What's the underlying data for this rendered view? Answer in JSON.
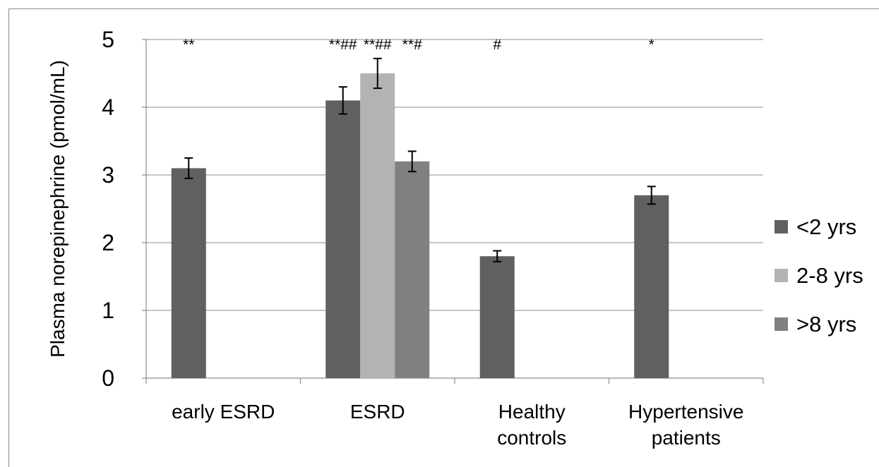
{
  "chart_data": {
    "type": "bar",
    "ylabel": "Plasma norepinephrine  (pmol/mL)",
    "xlabel": "",
    "ylim": [
      0,
      5
    ],
    "yticks": [
      "0",
      "1",
      "2",
      "3",
      "4",
      "5"
    ],
    "grid": true,
    "legend_position": "right",
    "categories": [
      {
        "lines": [
          "early ESRD"
        ]
      },
      {
        "lines": [
          "ESRD"
        ]
      },
      {
        "lines": [
          "Healthy",
          "controls"
        ]
      },
      {
        "lines": [
          "Hypertensive",
          "patients"
        ]
      }
    ],
    "series": [
      {
        "name": "<2 yrs",
        "color": "#606060",
        "values": [
          3.1,
          4.1,
          1.8,
          2.7
        ],
        "errors": [
          0.15,
          0.2,
          0.08,
          0.13
        ]
      },
      {
        "name": "2-8 yrs",
        "color": "#b3b3b3",
        "values": [
          null,
          4.5,
          null,
          null
        ],
        "errors": [
          null,
          0.22,
          null,
          null
        ]
      },
      {
        "name": ">8 yrs",
        "color": "#808080",
        "values": [
          null,
          3.2,
          null,
          null
        ],
        "errors": [
          null,
          0.15,
          null,
          null
        ]
      }
    ],
    "annotations": [
      {
        "category": 0,
        "series": 0,
        "text": "**"
      },
      {
        "category": 1,
        "series": 0,
        "text": "**##"
      },
      {
        "category": 1,
        "series": 1,
        "text": "**##"
      },
      {
        "category": 1,
        "series": 2,
        "text": "**#"
      },
      {
        "category": 2,
        "series": 0,
        "text": "#"
      },
      {
        "category": 3,
        "series": 0,
        "text": "*"
      }
    ]
  }
}
